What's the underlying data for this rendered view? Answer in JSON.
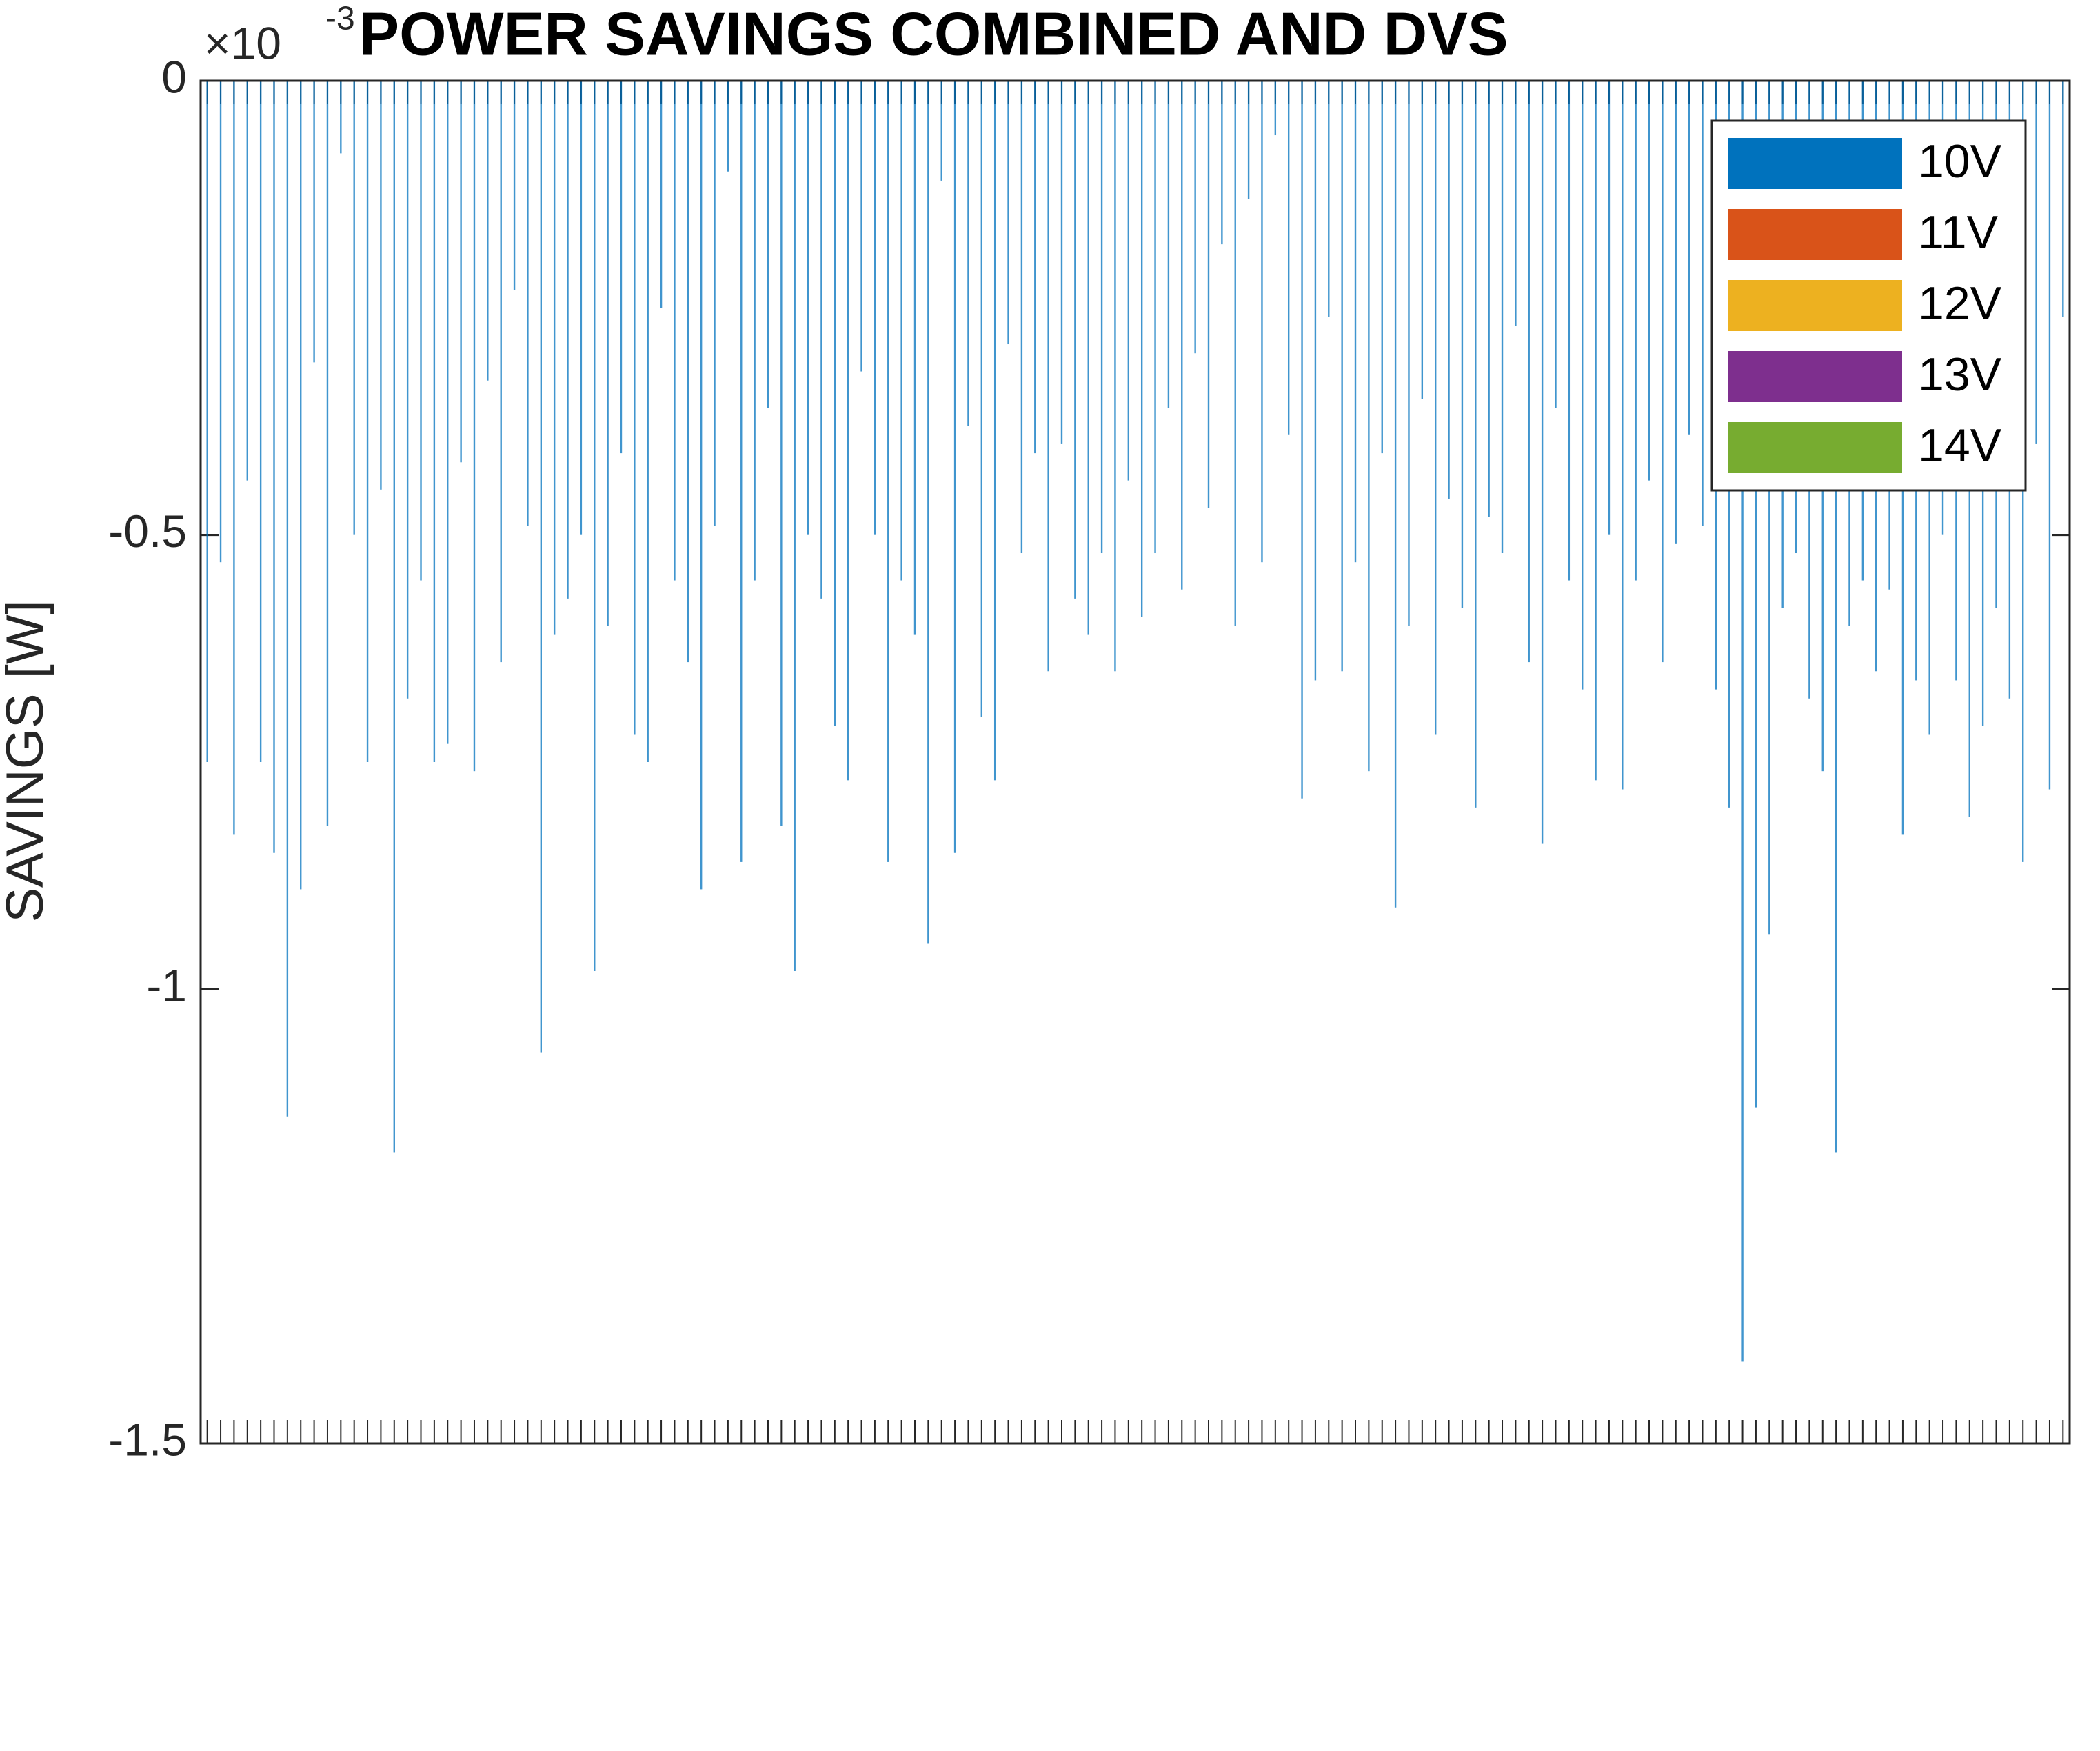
{
  "chart_data": {
    "type": "bar",
    "title": "POWER SAVINGS COMBINED AND DVS",
    "y_label": "SAVINGS  [W]",
    "y_multiplier": "×10",
    "y_multiplier_exponent": "-3",
    "ylim": [
      -1.5,
      0
    ],
    "yticks": [
      -1.5,
      -1,
      -0.5,
      0
    ],
    "legend_position": "upper right",
    "series": [
      {
        "name": "10V",
        "color": "#0072bd",
        "values": [
          -0.75,
          -0.53,
          -0.83,
          -0.44,
          -0.75,
          -0.85,
          -1.14,
          -0.89,
          -0.31,
          -0.82,
          -0.08,
          -0.5,
          -0.75,
          -0.45,
          -1.18,
          -0.68,
          -0.55,
          -0.75,
          -0.73,
          -0.42,
          -0.76,
          -0.33,
          -0.64,
          -0.23,
          -0.49,
          -1.07,
          -0.61,
          -0.57,
          -0.5,
          -0.98,
          -0.6,
          -0.41,
          -0.72,
          -0.75,
          -0.25,
          -0.55,
          -0.64,
          -0.89,
          -0.49,
          -0.1,
          -0.86,
          -0.55,
          -0.36,
          -0.82,
          -0.98,
          -0.5,
          -0.57,
          -0.71,
          -0.77,
          -0.32,
          -0.5,
          -0.86,
          -0.55,
          -0.61,
          -0.95,
          -0.11,
          -0.85,
          -0.38,
          -0.7,
          -0.77,
          -0.29,
          -0.52,
          -0.41,
          -0.65,
          -0.4,
          -0.57,
          -0.61,
          -0.52,
          -0.65,
          -0.44,
          -0.59,
          -0.52,
          -0.36,
          -0.56,
          -0.3,
          -0.47,
          -0.18,
          -0.6,
          -0.13,
          -0.53,
          -0.06,
          -0.39,
          -0.79,
          -0.66,
          -0.26,
          -0.65,
          -0.53,
          -0.76,
          -0.41,
          -0.91,
          -0.6,
          -0.35,
          -0.72,
          -0.46,
          -0.58,
          -0.8,
          -0.48,
          -0.52,
          -0.27,
          -0.64,
          -0.84,
          -0.36,
          -0.55,
          -0.67,
          -0.77,
          -0.5,
          -0.78,
          -0.55,
          -0.44,
          -0.64,
          -0.51,
          -0.39,
          -0.49,
          -0.67,
          -0.8,
          -1.41,
          -1.13,
          -0.94,
          -0.58,
          -0.52,
          -0.68,
          -0.76,
          -1.18,
          -0.6,
          -0.55,
          -0.65,
          -0.56,
          -0.83,
          -0.66,
          -0.72,
          -0.5,
          -0.66,
          -0.81,
          -0.71,
          -0.58,
          -0.68,
          -0.86,
          -0.4,
          -0.78,
          -0.26
        ]
      },
      {
        "name": "11V",
        "color": "#d95319"
      },
      {
        "name": "12V",
        "color": "#edb120"
      },
      {
        "name": "13V",
        "color": "#7e2f8e"
      },
      {
        "name": "14V",
        "color": "#77ac30"
      }
    ]
  }
}
